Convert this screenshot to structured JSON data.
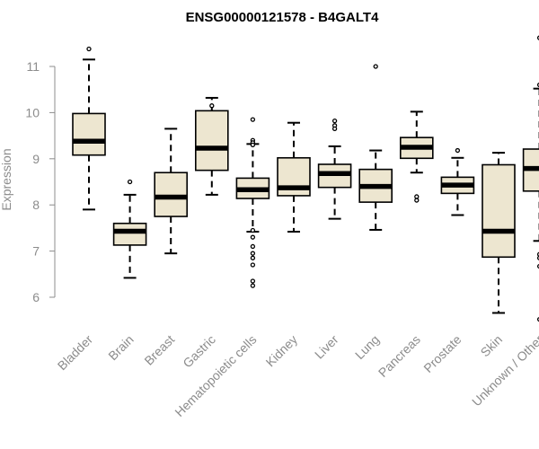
{
  "chart_data": {
    "type": "boxplot",
    "title": "ENSG00000121578 - B4GALT4",
    "xlabel": "",
    "ylabel": "Expression",
    "ylim": [
      5.5,
      11.7
    ],
    "yticks": [
      6,
      7,
      8,
      9,
      10,
      11
    ],
    "grid": false,
    "colors": {
      "box_fill": "#ede6d0",
      "stroke": "#000000",
      "axis": "#8c8c8c"
    },
    "categories": [
      "Bladder",
      "Brain",
      "Breast",
      "Gastric",
      "Hematopoietic cells",
      "Kidney",
      "Liver",
      "Lung",
      "Pancreas",
      "Prostate",
      "Skin",
      "Unknown / Other"
    ],
    "series": [
      {
        "name": "Bladder",
        "min": 7.9,
        "q1": 9.08,
        "median": 9.38,
        "q3": 9.98,
        "max": 11.15,
        "outliers": [
          11.38
        ]
      },
      {
        "name": "Brain",
        "min": 6.42,
        "q1": 7.13,
        "median": 7.43,
        "q3": 7.6,
        "max": 8.22,
        "outliers": [
          8.5
        ]
      },
      {
        "name": "Breast",
        "min": 6.95,
        "q1": 7.75,
        "median": 8.17,
        "q3": 8.7,
        "max": 9.65,
        "outliers": []
      },
      {
        "name": "Gastric",
        "min": 8.22,
        "q1": 8.75,
        "median": 9.23,
        "q3": 10.04,
        "max": 10.32,
        "outliers": [
          10.15
        ]
      },
      {
        "name": "Hematopoietic cells",
        "min": 7.42,
        "q1": 8.14,
        "median": 8.33,
        "q3": 8.58,
        "max": 9.32,
        "outliers": [
          9.85,
          9.4,
          9.35,
          9.3,
          7.45,
          7.3,
          7.1,
          6.95,
          6.85,
          6.7,
          6.35,
          6.25
        ]
      },
      {
        "name": "Kidney",
        "min": 7.42,
        "q1": 8.2,
        "median": 8.37,
        "q3": 9.02,
        "max": 9.78,
        "outliers": []
      },
      {
        "name": "Liver",
        "min": 7.7,
        "q1": 8.38,
        "median": 8.68,
        "q3": 8.88,
        "max": 9.27,
        "outliers": [
          9.82,
          9.72,
          9.65
        ]
      },
      {
        "name": "Lung",
        "min": 7.46,
        "q1": 8.06,
        "median": 8.4,
        "q3": 8.77,
        "max": 9.18,
        "outliers": [
          11.0
        ]
      },
      {
        "name": "Pancreas",
        "min": 8.7,
        "q1": 9.01,
        "median": 9.25,
        "q3": 9.46,
        "max": 10.02,
        "outliers": [
          8.18,
          8.1
        ]
      },
      {
        "name": "Prostate",
        "min": 7.78,
        "q1": 8.25,
        "median": 8.43,
        "q3": 8.6,
        "max": 9.02,
        "outliers": [
          9.18
        ]
      },
      {
        "name": "Skin",
        "min": 5.66,
        "q1": 6.87,
        "median": 7.43,
        "q3": 8.87,
        "max": 9.13,
        "outliers": []
      },
      {
        "name": "Unknown / Other",
        "min": 7.22,
        "q1": 8.3,
        "median": 8.79,
        "q3": 9.21,
        "max": 10.52,
        "outliers": [
          11.62,
          10.6,
          6.93,
          6.85,
          6.67,
          5.52
        ]
      }
    ]
  }
}
